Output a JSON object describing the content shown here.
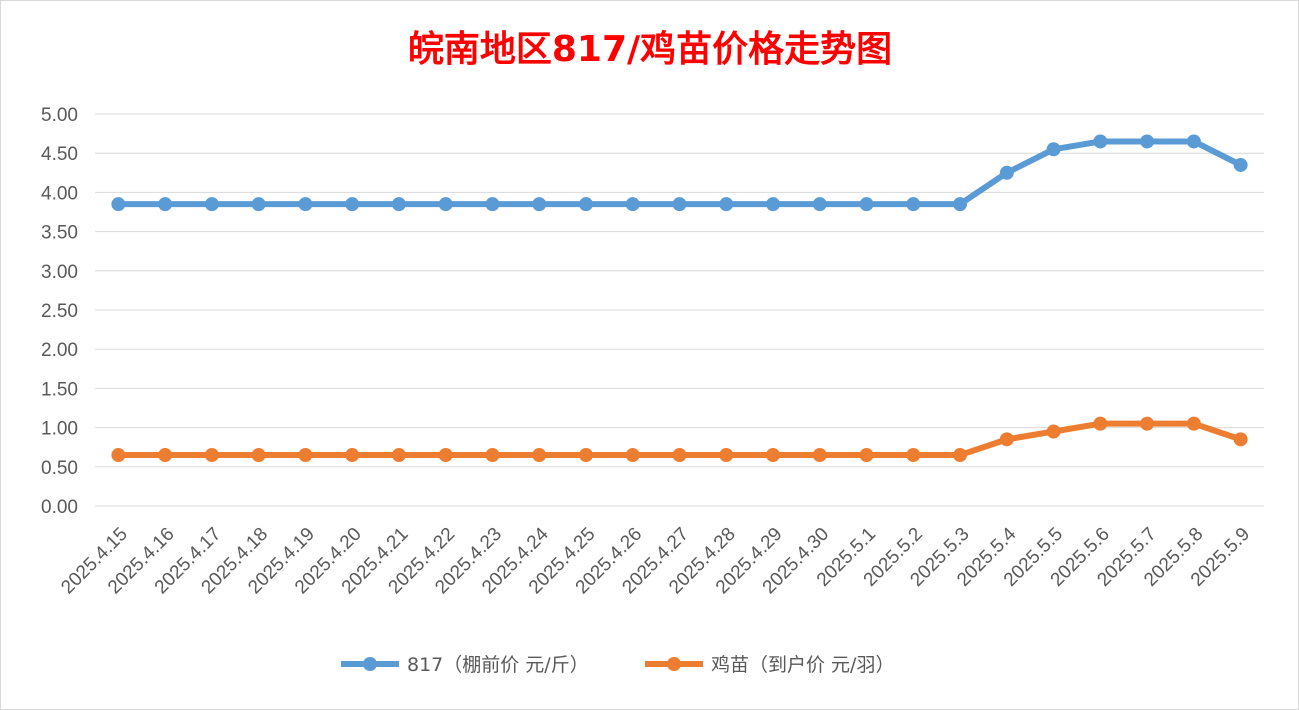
{
  "chart_data": {
    "type": "line",
    "title": "皖南地区817/鸡苗价格走势图",
    "categories": [
      "2025.4.15",
      "2025.4.16",
      "2025.4.17",
      "2025.4.18",
      "2025.4.19",
      "2025.4.20",
      "2025.4.21",
      "2025.4.22",
      "2025.4.23",
      "2025.4.24",
      "2025.4.25",
      "2025.4.26",
      "2025.4.27",
      "2025.4.28",
      "2025.4.29",
      "2025.4.30",
      "2025.5.1",
      "2025.5.2",
      "2025.5.3",
      "2025.5.4",
      "2025.5.5",
      "2025.5.6",
      "2025.5.7",
      "2025.5.8",
      "2025.5.9"
    ],
    "series": [
      {
        "name": "817（棚前价 元/斤）",
        "color": "#5b9bd5",
        "values": [
          3.85,
          3.85,
          3.85,
          3.85,
          3.85,
          3.85,
          3.85,
          3.85,
          3.85,
          3.85,
          3.85,
          3.85,
          3.85,
          3.85,
          3.85,
          3.85,
          3.85,
          3.85,
          3.85,
          4.25,
          4.55,
          4.65,
          4.65,
          4.65,
          4.35
        ]
      },
      {
        "name": "鸡苗（到户价 元/羽）",
        "color": "#ed7d31",
        "values": [
          0.65,
          0.65,
          0.65,
          0.65,
          0.65,
          0.65,
          0.65,
          0.65,
          0.65,
          0.65,
          0.65,
          0.65,
          0.65,
          0.65,
          0.65,
          0.65,
          0.65,
          0.65,
          0.65,
          0.85,
          0.95,
          1.05,
          1.05,
          1.05,
          0.85
        ]
      }
    ],
    "ylim": [
      0,
      5
    ],
    "yticks": [
      "0.00",
      "0.50",
      "1.00",
      "1.50",
      "2.00",
      "2.50",
      "3.00",
      "3.50",
      "4.00",
      "4.50",
      "5.00"
    ],
    "grid": true,
    "legend_position": "bottom"
  }
}
